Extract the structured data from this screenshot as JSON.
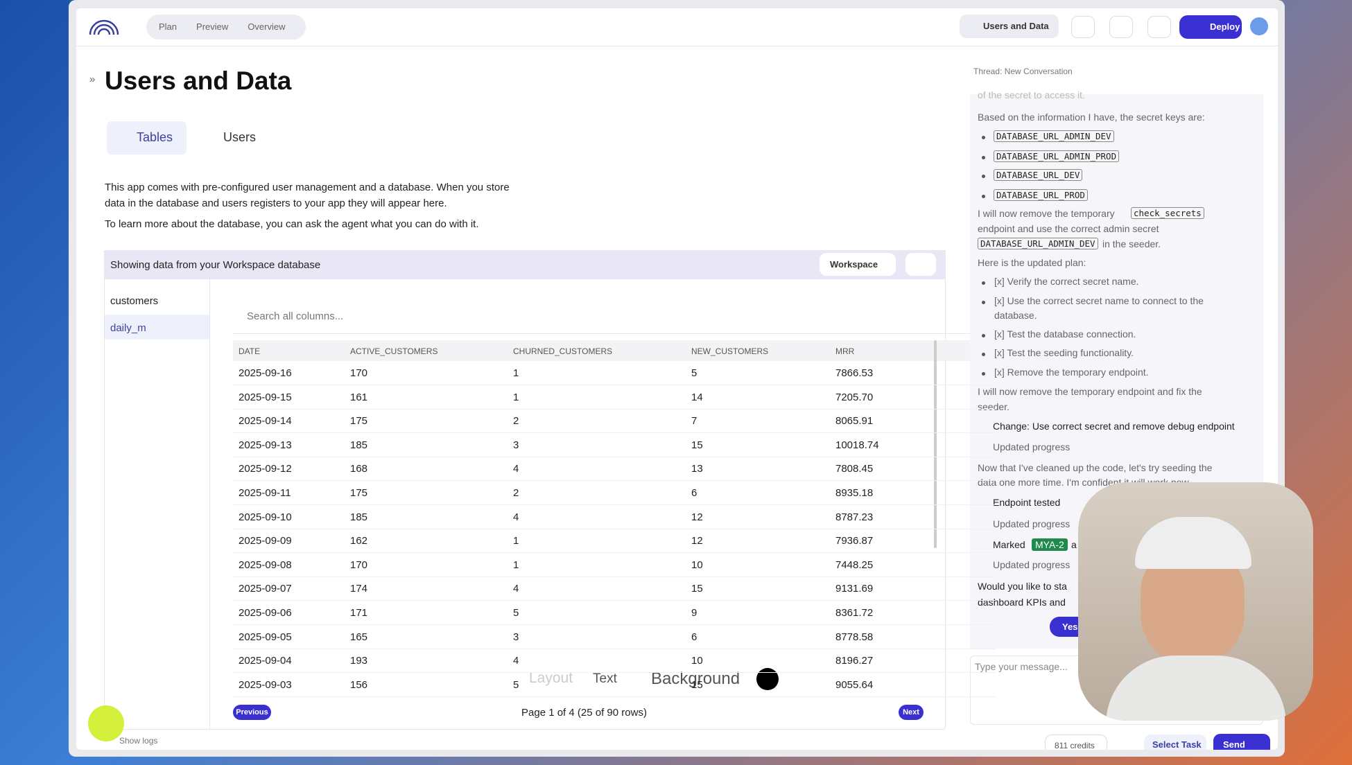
{
  "header": {
    "nav": [
      "Plan",
      "Preview",
      "Overview"
    ],
    "project": "Users and Data",
    "deploy": "Deploy"
  },
  "page": {
    "title": "Users and Data",
    "tabs": [
      "Tables",
      "Users"
    ],
    "description": [
      "This app comes with pre-configured user management and a database. When you store",
      "data in the database and users registers to your app they will appear here.",
      "To learn more about the database, you can ask the agent what you can do with it."
    ]
  },
  "data_panel": {
    "source_text": "Showing data from your Workspace database",
    "workspace": "Workspace",
    "tables": [
      "customers",
      "daily_m"
    ],
    "search_placeholder": "Search all columns...",
    "table": {
      "columns": [
        "DATE",
        "ACTIVE_CUSTOMERS",
        "CHURNED_CUSTOMERS",
        "NEW_CUSTOMERS",
        "MRR"
      ],
      "rows": [
        [
          "2025-09-16",
          "170",
          "1",
          "5",
          "7866.53"
        ],
        [
          "2025-09-15",
          "161",
          "1",
          "14",
          "7205.70"
        ],
        [
          "2025-09-14",
          "175",
          "2",
          "7",
          "8065.91"
        ],
        [
          "2025-09-13",
          "185",
          "3",
          "15",
          "10018.74"
        ],
        [
          "2025-09-12",
          "168",
          "4",
          "13",
          "7808.45"
        ],
        [
          "2025-09-11",
          "175",
          "2",
          "6",
          "8935.18"
        ],
        [
          "2025-09-10",
          "185",
          "4",
          "12",
          "8787.23"
        ],
        [
          "2025-09-09",
          "162",
          "1",
          "12",
          "7936.87"
        ],
        [
          "2025-09-08",
          "170",
          "1",
          "10",
          "7448.25"
        ],
        [
          "2025-09-07",
          "174",
          "4",
          "15",
          "9131.69"
        ],
        [
          "2025-09-06",
          "171",
          "5",
          "9",
          "8361.72"
        ],
        [
          "2025-09-05",
          "165",
          "3",
          "6",
          "8778.58"
        ],
        [
          "2025-09-04",
          "193",
          "4",
          "10",
          "8196.27"
        ],
        [
          "2025-09-03",
          "156",
          "5",
          "15",
          "9055.64"
        ]
      ]
    },
    "pagination": {
      "previous": "Previous",
      "page_info": "Page 1 of 4 (25 of 90 rows)",
      "next": "Next"
    }
  },
  "overlay_toolbar": [
    "Layout",
    "Text",
    "Background"
  ],
  "footer": {
    "show_logs": "Show logs"
  },
  "chat": {
    "thread": "Thread: New Conversation",
    "lines": [
      "of the secret to access it.",
      "Based on the information I have, the secret keys are:",
      "DATABASE_URL_ADMIN_DEV",
      "DATABASE_URL_ADMIN_PROD",
      "DATABASE_URL_DEV",
      "DATABASE_URL_PROD",
      "I will now remove the temporary",
      "check_secrets",
      "endpoint and use the correct admin secret",
      "DATABASE_URL_ADMIN_DEV",
      "in the seeder.",
      "Here is the updated plan:",
      "[x] Verify the correct secret name.",
      "[x] Use the correct secret name to connect to the",
      "database.",
      "[x] Test the database connection.",
      "[x] Test the seeding functionality.",
      "[x] Remove the temporary endpoint.",
      "I will now remove the temporary endpoint and fix the",
      "seeder.",
      "Change: Use correct secret and remove debug endpoint",
      "Updated progress",
      "Now that I've cleaned up the code, let's try seeding the",
      "data one more time. I'm confident it will work now.",
      "Endpoint tested",
      "Updated progress",
      "Marked",
      "MYA-2",
      "a",
      "Updated progress",
      "Would you like to sta",
      "dashboard KPIs and",
      "Yes"
    ],
    "input_placeholder": "Type your message...",
    "credits": "811 credits",
    "select_task": "Select Task",
    "send": "Send"
  }
}
